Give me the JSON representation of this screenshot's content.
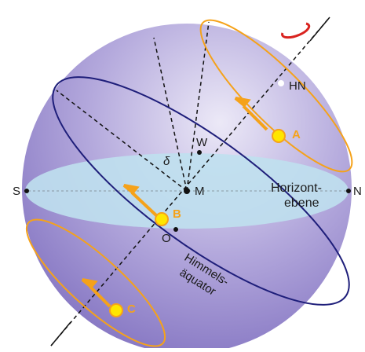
{
  "labels": {
    "hn": "HN",
    "a": "A",
    "w": "W",
    "delta": "δ",
    "s": "S",
    "m": "M",
    "horizon_line1": "Horizont-",
    "horizon_line2": "ebene",
    "n": "N",
    "b": "B",
    "o": "O",
    "equator_line1": "Himmels-",
    "equator_line2": "äquator",
    "c": "C"
  }
}
